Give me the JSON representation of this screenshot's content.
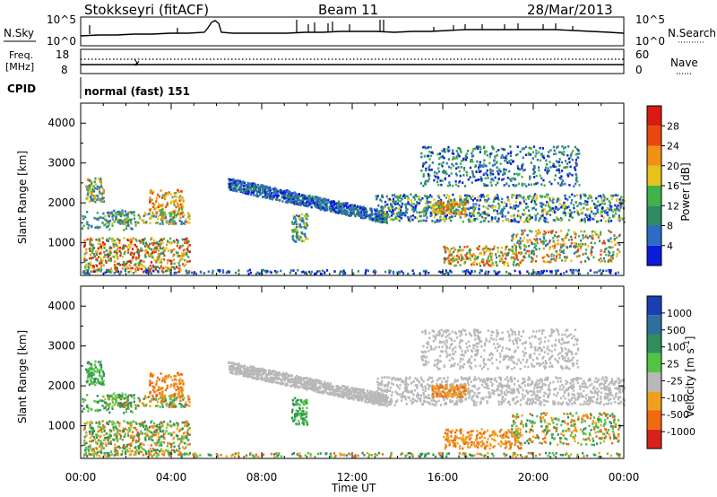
{
  "header": {
    "station": "Stokkseyri (fitACF)",
    "beam": "Beam 11",
    "date": "28/Mar/2013"
  },
  "nsky_panel": {
    "left_label": "N.Sky",
    "right_label": "N.Search",
    "tick_top": "10^5",
    "tick_bottom": "10^0"
  },
  "freq_panel": {
    "label_line1": "Freq.",
    "label_line2": "[MHz]",
    "left_ticks": [
      "18",
      "8"
    ],
    "right_ticks": [
      "60",
      "0"
    ],
    "right_label": "Nave"
  },
  "cpid": {
    "label": "CPID",
    "value": "normal (fast) 151"
  },
  "x_axis": {
    "label": "Time UT",
    "ticks": [
      "00:00",
      "04:00",
      "08:00",
      "12:00",
      "16:00",
      "20:00",
      "00:00"
    ]
  },
  "chart_data": [
    {
      "type": "heatmap",
      "title": "",
      "xlabel": "Time UT",
      "ylabel": "Slant Range [km]",
      "xlim": [
        0,
        24
      ],
      "ylim": [
        180,
        4500
      ],
      "yticks": [
        1000,
        2000,
        3000,
        4000
      ],
      "colorbar": {
        "label": "Power [dB]",
        "ticks": [
          "4",
          "8",
          "12",
          "16",
          "20",
          "24",
          "28"
        ],
        "colors": [
          "#0a1bd9",
          "#2d6cc4",
          "#2f8a63",
          "#3fb34a",
          "#e6c21a",
          "#f09014",
          "#e8480f",
          "#d81a12"
        ]
      },
      "features": [
        {
          "description": "strong backscatter",
          "t_range": [
            0.0,
            5.0
          ],
          "range_km": [
            350,
            1200
          ]
        },
        {
          "description": "diagonal band",
          "t_range": [
            6.5,
            13.5
          ],
          "range_km": [
            1400,
            2500
          ]
        },
        {
          "description": "broad echoes",
          "t_range": [
            13.0,
            24.0
          ],
          "range_km": [
            600,
            3500
          ]
        }
      ]
    },
    {
      "type": "heatmap",
      "title": "",
      "xlabel": "Time UT",
      "ylabel": "Slant Range [km]",
      "xlim": [
        0,
        24
      ],
      "ylim": [
        180,
        4500
      ],
      "yticks": [
        1000,
        2000,
        3000,
        4000
      ],
      "colorbar": {
        "label": "Velocity [m s^-1]",
        "ticks": [
          "1000",
          "500",
          "100",
          "25",
          "-25",
          "-100",
          "-500",
          "-1000"
        ],
        "colors": [
          "#1a3fb4",
          "#2e6f9c",
          "#2f8e5a",
          "#52c442",
          "#b8b8b8",
          "#f0a020",
          "#f06a10",
          "#d8221a"
        ]
      }
    }
  ]
}
